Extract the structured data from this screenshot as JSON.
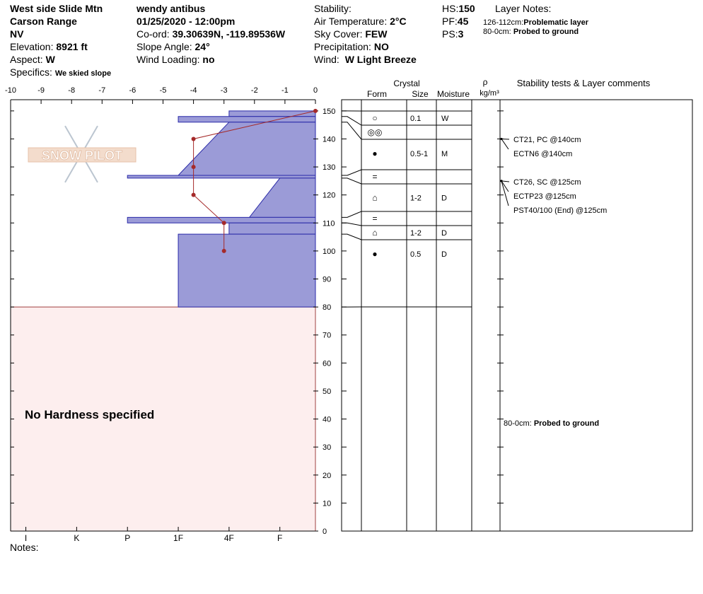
{
  "header": {
    "location": "West side Slide Mtn",
    "range": "Carson Range",
    "state": "NV",
    "elevation": {
      "label": "Elevation:",
      "value": "8921 ft"
    },
    "aspect": {
      "label": "Aspect:",
      "value": "W"
    },
    "specifics": {
      "label": "Specifics:",
      "value": "We skied slope"
    },
    "observer": "wendy antibus",
    "datetime": "01/25/2020 - 12:00pm",
    "coord": {
      "label": "Co-ord:",
      "value": "39.30639N, -119.89536W"
    },
    "slope_angle": {
      "label": "Slope Angle:",
      "value": "24°"
    },
    "wind_loading": {
      "label": "Wind Loading:",
      "value": "no"
    },
    "stability": {
      "label": "Stability:"
    },
    "air_temp": {
      "label": "Air Temperature:",
      "value": "2°C"
    },
    "sky_cover": {
      "label": "Sky Cover:",
      "value": "FEW"
    },
    "precipitation": {
      "label": "Precipitation:",
      "value": "NO"
    },
    "wind": {
      "label": "Wind:",
      "value": "W Light Breeze"
    },
    "hs": {
      "label": "HS:",
      "value": "150"
    },
    "pf": {
      "label": "PF:",
      "value": "45"
    },
    "ps": {
      "label": "PS:",
      "value": "3"
    },
    "layer_notes": {
      "title": "Layer Notes:",
      "notes": [
        {
          "range": "126-112cm:",
          "text": "Problematic layer"
        },
        {
          "range": "80-0cm:",
          "text": "Probed to ground"
        }
      ]
    }
  },
  "profile": {
    "logo": "SNOW PILOT",
    "temperature": {
      "xlim": [
        -10,
        0
      ],
      "xticks": [
        -10,
        -9,
        -8,
        -7,
        -6,
        -5,
        -4,
        -3,
        -2,
        -1,
        0
      ],
      "depth": [
        150,
        140,
        130,
        120,
        110,
        100
      ],
      "temp": [
        0,
        -4,
        -4,
        -4,
        -3,
        -3
      ],
      "color": "#a52a2a"
    },
    "height": {
      "ylim": [
        0,
        154
      ],
      "yticks": [
        0,
        10,
        20,
        30,
        40,
        50,
        60,
        70,
        80,
        90,
        100,
        110,
        120,
        130,
        140,
        150
      ]
    },
    "hardness": {
      "xlim": [
        0.3,
        6.3
      ],
      "ticks": [
        {
          "value": 6,
          "label": "I"
        },
        {
          "value": 5,
          "label": "K"
        },
        {
          "value": 4,
          "label": "P"
        },
        {
          "value": 3,
          "label": "1F"
        },
        {
          "value": 2,
          "label": "4F"
        },
        {
          "value": 1,
          "label": "F"
        }
      ],
      "color": "#9b9bd7"
    },
    "layers": [
      {
        "top": 150,
        "bottom": 148,
        "hardness_top": 2,
        "hardness_bottom": 2
      },
      {
        "top": 148,
        "bottom": 146,
        "hardness_top": 3,
        "hardness_bottom": 3
      },
      {
        "top": 146,
        "bottom": 127,
        "hardness_top": 2,
        "hardness_bottom": 3
      },
      {
        "top": 127,
        "bottom": 126,
        "hardness_top": 4,
        "hardness_bottom": 4
      },
      {
        "top": 126,
        "bottom": 112,
        "hardness_top": 1,
        "hardness_bottom": 1.6
      },
      {
        "top": 112,
        "bottom": 110,
        "hardness_top": 4,
        "hardness_bottom": 4
      },
      {
        "top": 110,
        "bottom": 106,
        "hardness_top": 2,
        "hardness_bottom": 2
      },
      {
        "top": 106,
        "bottom": 80,
        "hardness_top": 3,
        "hardness_bottom": 3
      }
    ],
    "no_hardness": {
      "top": 80,
      "text": "No Hardness specified"
    }
  },
  "grains": {
    "headers": {
      "crystal": "Crystal",
      "form": "Form",
      "size": "Size",
      "moisture": "Moisture",
      "rho": "ρ",
      "density_unit": "kg/m³",
      "comments": "Stability tests & Layer comments"
    },
    "boundaries": [
      150,
      148,
      146,
      127,
      126,
      112,
      110,
      106,
      80
    ],
    "rows": [
      {
        "form": "○",
        "size": "0.1",
        "moisture": "W"
      },
      {
        "form": "◎◎"
      },
      {
        "form": "●",
        "size": "0.5-1",
        "moisture": "M"
      },
      {
        "form": "="
      },
      {
        "form": "⌂",
        "size": "1-2",
        "moisture": "D"
      },
      {
        "form": "="
      },
      {
        "form": "⌂",
        "size": "1-2",
        "moisture": "D"
      },
      {
        "form": "●",
        "size": "0.5",
        "moisture": "D"
      }
    ],
    "tests": [
      {
        "text": "CT21, PC @140cm",
        "depth": 140
      },
      {
        "text": "ECTN6 @140cm",
        "depth": 140
      },
      {
        "text": "CT26, SC @125cm",
        "depth": 125
      },
      {
        "text": "ECTP23 @125cm",
        "depth": 125
      },
      {
        "text": "PST40/100 (End) @125cm",
        "depth": 125
      }
    ],
    "comments": [
      {
        "range": "80-0cm:",
        "text": "Probed to ground"
      }
    ]
  },
  "notes": "Notes:"
}
